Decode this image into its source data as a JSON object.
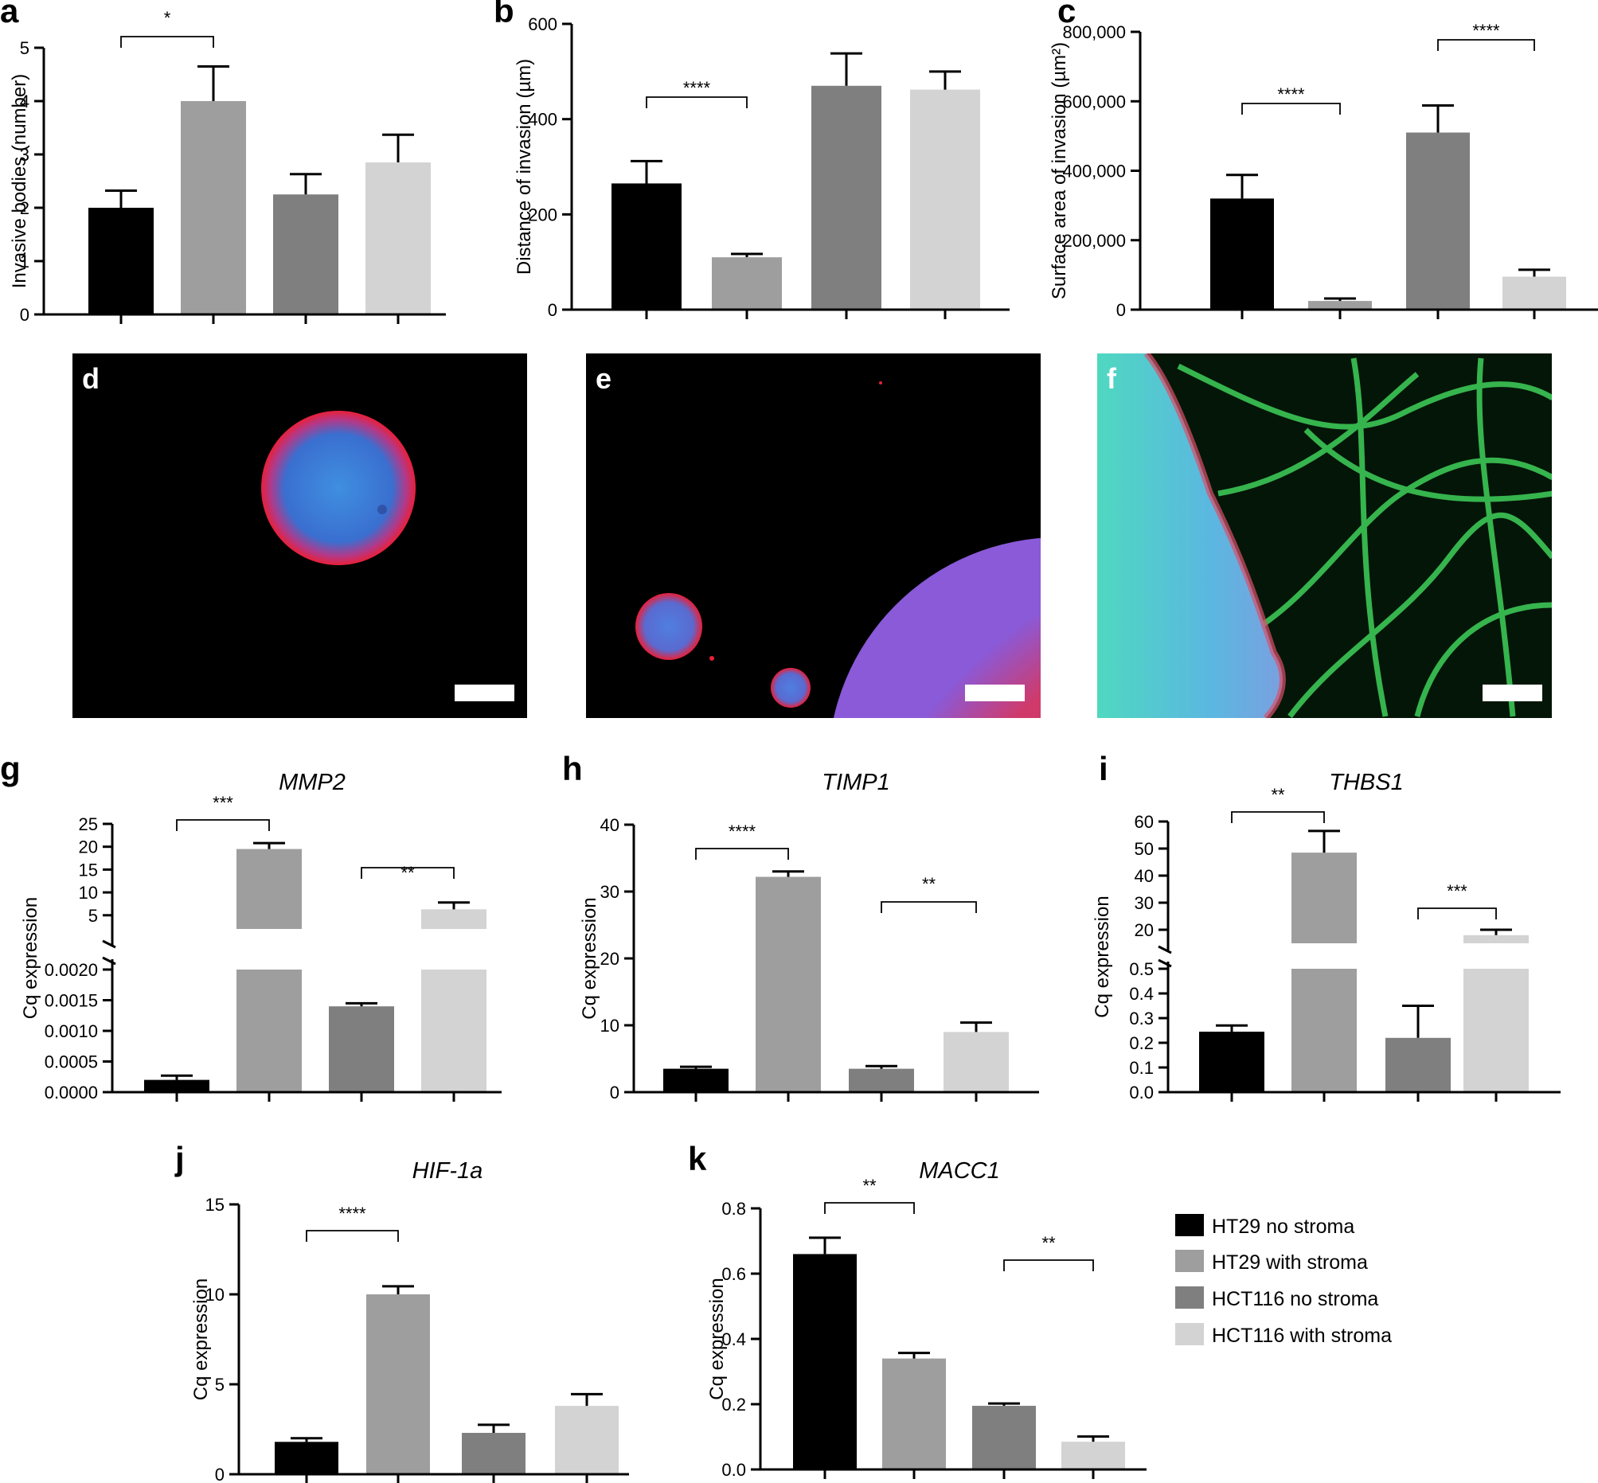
{
  "legend": [
    {
      "label": "HT29 no stroma",
      "color": "#000000"
    },
    {
      "label": "HT29 with stroma",
      "color": "#9e9e9e"
    },
    {
      "label": "HCT116 no stroma",
      "color": "#7f7f7f"
    },
    {
      "label": "HCT116 with stroma",
      "color": "#d3d3d3"
    }
  ],
  "images": [
    {
      "panel": "d",
      "description_icon": "microscopy-spheroid-red-blue"
    },
    {
      "panel": "e",
      "description_icon": "microscopy-spheroids-red-blue"
    },
    {
      "panel": "f",
      "description_icon": "microscopy-spheroid-green-stroma"
    }
  ],
  "chart_data": [
    {
      "panel": "a",
      "type": "bar",
      "title": "",
      "ylabel": "Invasive bodies (number)",
      "ylim": [
        0,
        5
      ],
      "yticks": [
        "0",
        "1",
        "2",
        "3",
        "4",
        "5"
      ],
      "values": [
        2.0,
        4.0,
        2.25,
        2.85
      ],
      "errors": [
        0.32,
        0.65,
        0.38,
        0.52
      ],
      "brackets": [
        {
          "from": 0,
          "to": 1,
          "label": "*"
        }
      ]
    },
    {
      "panel": "b",
      "type": "bar",
      "title": "",
      "ylabel": "Distance of invasion (µm)",
      "ylim": [
        0,
        600
      ],
      "yticks": [
        "0",
        "200",
        "400",
        "600"
      ],
      "values": [
        265,
        110,
        470,
        462
      ],
      "errors": [
        47,
        7,
        68,
        38
      ],
      "brackets": [
        {
          "from": 0,
          "to": 1,
          "label": "****"
        }
      ]
    },
    {
      "panel": "c",
      "type": "bar",
      "title": "",
      "ylabel": "Surface area of invasion (µm²)",
      "ylim": [
        0,
        800000
      ],
      "yticks": [
        "0",
        "200,000",
        "400,000",
        "600,000",
        "800,000"
      ],
      "values": [
        320000,
        25000,
        510000,
        95000
      ],
      "errors": [
        68000,
        7000,
        78000,
        20000
      ],
      "brackets": [
        {
          "from": 0,
          "to": 1,
          "label": "****"
        },
        {
          "from": 2,
          "to": 3,
          "label": "****"
        }
      ]
    },
    {
      "panel": "g",
      "type": "bar",
      "title": "MMP2",
      "ylabel": "Cq expression",
      "broken_axis": true,
      "lower_ylim": [
        0,
        0.002
      ],
      "lower_yticks": [
        "0.0000",
        "0.0005",
        "0.0010",
        "0.0015",
        "0.0020"
      ],
      "upper_ylim": [
        2,
        25
      ],
      "upper_yticks": [
        "5",
        "10",
        "15",
        "20",
        "25"
      ],
      "values": [
        0.0002,
        19.5,
        0.0014,
        6.3
      ],
      "errors": [
        7e-05,
        1.3,
        5e-05,
        1.5
      ],
      "brackets": [
        {
          "from": 0,
          "to": 1,
          "label": "***"
        },
        {
          "from": 2,
          "to": 3,
          "label": "**"
        }
      ]
    },
    {
      "panel": "h",
      "type": "bar",
      "title": "TIMP1",
      "ylabel": "Cq expression",
      "ylim": [
        0,
        40
      ],
      "yticks": [
        "0",
        "10",
        "20",
        "30",
        "40"
      ],
      "values": [
        3.5,
        32.2,
        3.5,
        9.0
      ],
      "errors": [
        0.3,
        0.8,
        0.4,
        1.4
      ],
      "brackets": [
        {
          "from": 0,
          "to": 1,
          "label": "****"
        },
        {
          "from": 2,
          "to": 3,
          "label": "**"
        }
      ]
    },
    {
      "panel": "i",
      "type": "bar",
      "title": "THBS1",
      "ylabel": "Cq expression",
      "broken_axis": true,
      "lower_ylim": [
        0,
        0.5
      ],
      "lower_yticks": [
        "0.0",
        "0.1",
        "0.2",
        "0.3",
        "0.4",
        "0.5"
      ],
      "upper_ylim": [
        15,
        60
      ],
      "upper_yticks": [
        "20",
        "30",
        "40",
        "50",
        "60"
      ],
      "values": [
        0.245,
        48.5,
        0.22,
        18.0
      ],
      "errors": [
        0.025,
        8.0,
        0.13,
        2.0
      ],
      "brackets": [
        {
          "from": 0,
          "to": 1,
          "label": "**"
        },
        {
          "from": 2,
          "to": 3,
          "label": "***"
        }
      ]
    },
    {
      "panel": "j",
      "type": "bar",
      "title": "HIF-1a",
      "ylabel": "Cq expression",
      "ylim": [
        0,
        15
      ],
      "yticks": [
        "0",
        "5",
        "10",
        "15"
      ],
      "values": [
        1.8,
        10.0,
        2.3,
        3.8
      ],
      "errors": [
        0.2,
        0.45,
        0.45,
        0.65
      ],
      "brackets": [
        {
          "from": 0,
          "to": 1,
          "label": "****"
        }
      ]
    },
    {
      "panel": "k",
      "type": "bar",
      "title": "MACC1",
      "ylabel": "Cq expression",
      "ylim": [
        0,
        0.8
      ],
      "yticks": [
        "0.0",
        "0.2",
        "0.4",
        "0.6",
        "0.8"
      ],
      "values": [
        0.66,
        0.34,
        0.195,
        0.085
      ],
      "errors": [
        0.05,
        0.017,
        0.007,
        0.016
      ],
      "brackets": [
        {
          "from": 0,
          "to": 1,
          "label": "**"
        },
        {
          "from": 2,
          "to": 3,
          "label": "**"
        }
      ]
    }
  ]
}
